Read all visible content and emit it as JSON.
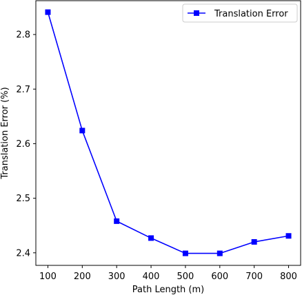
{
  "chart_data": {
    "type": "line",
    "x": [
      100,
      200,
      300,
      400,
      500,
      600,
      700,
      800
    ],
    "series": [
      {
        "name": "Translation Error",
        "values": [
          2.841,
          2.624,
          2.458,
          2.427,
          2.399,
          2.399,
          2.42,
          2.431
        ],
        "color": "#0000ff",
        "marker": "square"
      }
    ],
    "xlabel": "Path Length (m)",
    "ylabel": "Translation Error (%)",
    "xlim": [
      65,
      835
    ],
    "ylim": [
      2.377,
      2.862
    ],
    "xticks": [
      100,
      200,
      300,
      400,
      500,
      600,
      700,
      800
    ],
    "xtick_labels": [
      "100",
      "200",
      "300",
      "400",
      "500",
      "600",
      "700",
      "800"
    ],
    "yticks": [
      2.4,
      2.5,
      2.6,
      2.7,
      2.8
    ],
    "ytick_labels": [
      "2.4",
      "2.5",
      "2.6",
      "2.7",
      "2.8"
    ],
    "grid": false,
    "legend_position": "top-right"
  }
}
